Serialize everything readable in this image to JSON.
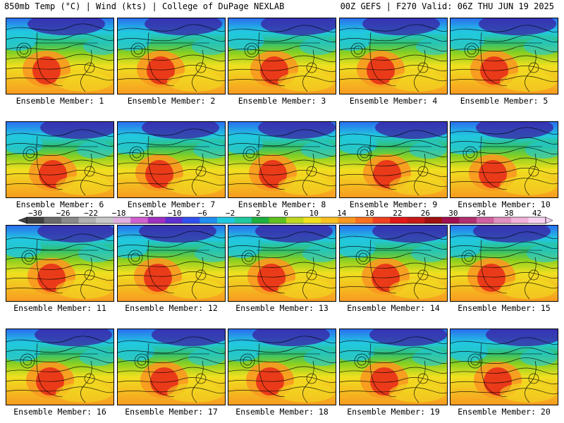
{
  "header": {
    "left": "850mb Temp (°C) | Wind (kts) | College of DuPage NEXLAB",
    "right": "00Z GEFS | F270 Valid: 06Z THU JUN 19 2025"
  },
  "members": [
    {
      "label": "Ensemble Member: 1"
    },
    {
      "label": "Ensemble Member: 2"
    },
    {
      "label": "Ensemble Member: 3"
    },
    {
      "label": "Ensemble Member: 4"
    },
    {
      "label": "Ensemble Member: 5"
    },
    {
      "label": "Ensemble Member: 6"
    },
    {
      "label": "Ensemble Member: 7"
    },
    {
      "label": "Ensemble Member: 8"
    },
    {
      "label": "Ensemble Member: 9"
    },
    {
      "label": "Ensemble Member: 10"
    },
    {
      "label": "Ensemble Member: 11"
    },
    {
      "label": "Ensemble Member: 12"
    },
    {
      "label": "Ensemble Member: 13"
    },
    {
      "label": "Ensemble Member: 14"
    },
    {
      "label": "Ensemble Member: 15"
    },
    {
      "label": "Ensemble Member: 16"
    },
    {
      "label": "Ensemble Member: 17"
    },
    {
      "label": "Ensemble Member: 18"
    },
    {
      "label": "Ensemble Member: 19"
    },
    {
      "label": "Ensemble Member: 20"
    }
  ],
  "colorbar": {
    "ticks": [
      "−30",
      "−26",
      "−22",
      "−18",
      "−14",
      "−10",
      "−6",
      "−2",
      "2",
      "6",
      "10",
      "14",
      "18",
      "22",
      "26",
      "30",
      "34",
      "38",
      "42"
    ],
    "colors": [
      "#404040",
      "#6a6a6a",
      "#8a8a8a",
      "#b0b0b0",
      "#c8c8c8",
      "#e0b0e0",
      "#d060d0",
      "#a030c0",
      "#6030d0",
      "#3050f0",
      "#2090f0",
      "#20c8e0",
      "#20c8a0",
      "#20b040",
      "#60c020",
      "#c0d820",
      "#f0e020",
      "#f8c020",
      "#f89820",
      "#f87020",
      "#f04020",
      "#e01818",
      "#c81818",
      "#a01010",
      "#a01050",
      "#b03070",
      "#d060a0",
      "#e090c0",
      "#f0b0d8",
      "#f8d0f0"
    ]
  },
  "map_colors": {
    "deep_cold": "#3a1fa0",
    "cold": "#2a6ef0",
    "cool": "#22c8e0",
    "mild": "#30c070",
    "green": "#8ad020",
    "warm": "#f0e020",
    "hot_orange": "#f89820",
    "hot": "#e83018"
  }
}
